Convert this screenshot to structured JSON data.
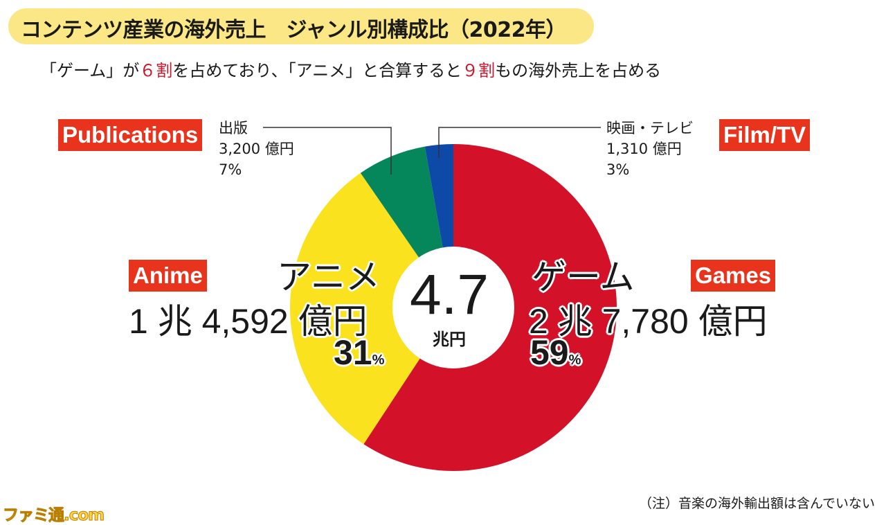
{
  "header": {
    "title": "コンテンツ産業の海外売上　ジャンル別構成比（2022年）",
    "subtitle_part1": "「ゲーム」が",
    "subtitle_em1": "６割",
    "subtitle_part2": "を占めており、「アニメ」と合算すると",
    "subtitle_em2": "９割",
    "subtitle_part3": "もの海外売上を占める"
  },
  "center": {
    "total": "4.7",
    "unit": "兆円"
  },
  "labels": {
    "games": {
      "en": "Games",
      "ja": "ゲーム",
      "amount": "2 兆 7,780 億円",
      "pct": "59",
      "pct_sign": "%"
    },
    "anime": {
      "en": "Anime",
      "ja": "アニメ",
      "amount": "1 兆 4,592 億円",
      "pct": "31",
      "pct_sign": "%"
    },
    "publications": {
      "en": "Publications",
      "ja": "出版",
      "amount": "3,200 億円",
      "pct": "7%"
    },
    "film_tv": {
      "en": "Film/TV",
      "ja": "映画・テレビ",
      "amount": "1,310 億円",
      "pct": "3%"
    }
  },
  "note": "（注）音楽の海外輸出額は含んでいない",
  "watermark": "ファミ通.com",
  "chart_data": {
    "type": "pie",
    "title": "コンテンツ産業の海外売上　ジャンル別構成比（2022年）",
    "total_label": "4.7兆円",
    "slices": [
      {
        "name": "ゲーム",
        "name_en": "Games",
        "value": 27780,
        "unit": "億円",
        "percent": 59,
        "color": "#d3122a"
      },
      {
        "name": "アニメ",
        "name_en": "Anime",
        "value": 14592,
        "unit": "億円",
        "percent": 31,
        "color": "#fbe21f"
      },
      {
        "name": "出版",
        "name_en": "Publications",
        "value": 3200,
        "unit": "億円",
        "percent": 7,
        "color": "#05875b"
      },
      {
        "name": "映画・テレビ",
        "name_en": "Film/TV",
        "value": 1310,
        "unit": "億円",
        "percent": 3,
        "color": "#0d4aa8"
      }
    ]
  }
}
